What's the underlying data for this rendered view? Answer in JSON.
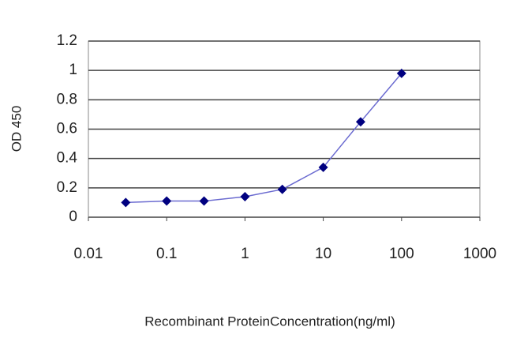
{
  "chart_data": {
    "type": "line",
    "xlabel": "Recombinant ProteinConcentration(ng/ml)",
    "ylabel": "OD 450",
    "x": [
      0.03,
      0.1,
      0.3,
      1,
      3,
      10,
      30,
      100
    ],
    "series": [
      {
        "color": "#000080",
        "line_color": "#6a6ad0",
        "values": [
          0.1,
          0.11,
          0.11,
          0.14,
          0.19,
          0.34,
          0.65,
          0.98
        ]
      }
    ],
    "xscale": "log",
    "xlim": [
      0.01,
      1000
    ],
    "xticks": [
      0.01,
      0.1,
      1,
      10,
      100,
      1000
    ],
    "ylim": [
      0,
      1.2
    ],
    "yticks": [
      0,
      0.2,
      0.4,
      0.6,
      0.8,
      1,
      1.2
    ],
    "grid": true
  }
}
